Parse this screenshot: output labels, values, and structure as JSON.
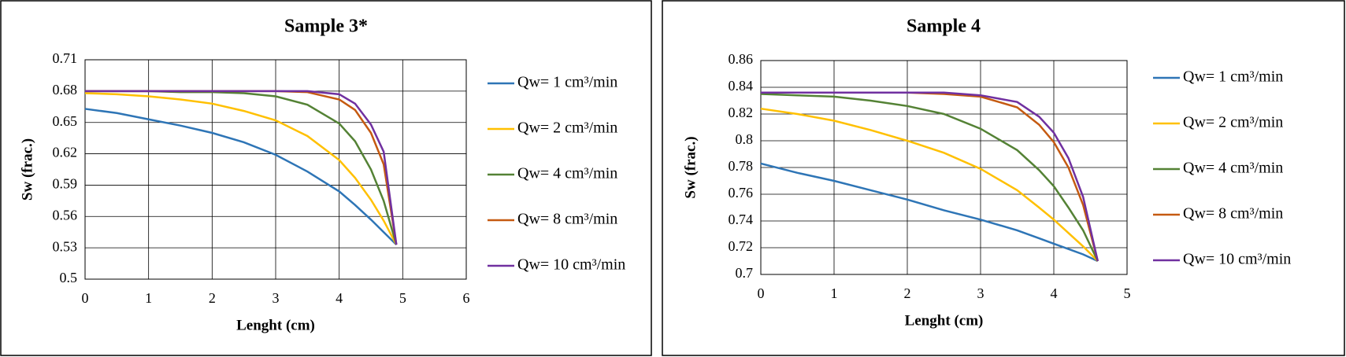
{
  "chart_data": [
    {
      "type": "line",
      "title": "Sample 3*",
      "x_label": "Lenght (cm)",
      "y_label": "Sw (frac.)",
      "xlim": [
        0,
        6
      ],
      "xticks": [
        0,
        1,
        2,
        3,
        4,
        5,
        6
      ],
      "ylim": [
        0.5,
        0.71
      ],
      "yticks": [
        0.5,
        0.53,
        0.56,
        0.59,
        0.62,
        0.65,
        0.68,
        0.71
      ],
      "grid": true,
      "legend": "right",
      "x": [
        0,
        0.5,
        1,
        1.5,
        2,
        2.5,
        3,
        3.5,
        4,
        4.25,
        4.5,
        4.7,
        4.9
      ],
      "series": [
        {
          "name": "Qw= 1 cm³/min",
          "color": "#2e75b6",
          "values": [
            0.663,
            0.659,
            0.653,
            0.647,
            0.64,
            0.631,
            0.619,
            0.603,
            0.584,
            0.571,
            0.557,
            0.545,
            0.533
          ]
        },
        {
          "name": "Qw= 2 cm³/min",
          "color": "#ffc000",
          "values": [
            0.678,
            0.677,
            0.675,
            0.672,
            0.668,
            0.661,
            0.652,
            0.637,
            0.614,
            0.597,
            0.576,
            0.556,
            0.533
          ]
        },
        {
          "name": "Qw= 4 cm³/min",
          "color": "#548235",
          "values": [
            0.68,
            0.68,
            0.68,
            0.679,
            0.679,
            0.678,
            0.675,
            0.667,
            0.649,
            0.632,
            0.605,
            0.575,
            0.533
          ]
        },
        {
          "name": "Qw= 8 cm³/min",
          "color": "#c55a11",
          "values": [
            0.68,
            0.68,
            0.68,
            0.68,
            0.68,
            0.68,
            0.68,
            0.679,
            0.672,
            0.662,
            0.64,
            0.61,
            0.533
          ]
        },
        {
          "name": "Qw= 10 cm³/min",
          "color": "#7030a0",
          "values": [
            0.68,
            0.68,
            0.68,
            0.68,
            0.68,
            0.68,
            0.68,
            0.68,
            0.677,
            0.668,
            0.648,
            0.622,
            0.533
          ]
        }
      ]
    },
    {
      "type": "line",
      "title": "Sample 4",
      "x_label": "Lenght (cm)",
      "y_label": "Sw (frac.)",
      "xlim": [
        0,
        5
      ],
      "xticks": [
        0,
        1,
        2,
        3,
        4,
        5
      ],
      "ylim": [
        0.7,
        0.86
      ],
      "yticks": [
        0.7,
        0.72,
        0.74,
        0.76,
        0.78,
        0.8,
        0.82,
        0.84,
        0.86
      ],
      "grid": true,
      "legend": "right",
      "x": [
        0,
        0.5,
        1,
        1.5,
        2,
        2.5,
        3,
        3.5,
        3.8,
        4,
        4.2,
        4.4,
        4.6
      ],
      "series": [
        {
          "name": "Qw= 1 cm³/min",
          "color": "#2e75b6",
          "values": [
            0.783,
            0.776,
            0.77,
            0.763,
            0.756,
            0.748,
            0.741,
            0.733,
            0.727,
            0.723,
            0.719,
            0.715,
            0.71
          ]
        },
        {
          "name": "Qw= 2 cm³/min",
          "color": "#ffc000",
          "values": [
            0.824,
            0.82,
            0.815,
            0.808,
            0.8,
            0.791,
            0.779,
            0.763,
            0.75,
            0.741,
            0.731,
            0.721,
            0.71
          ]
        },
        {
          "name": "Qw= 4 cm³/min",
          "color": "#548235",
          "values": [
            0.835,
            0.834,
            0.833,
            0.83,
            0.826,
            0.82,
            0.809,
            0.793,
            0.778,
            0.766,
            0.75,
            0.733,
            0.71
          ]
        },
        {
          "name": "Qw= 8 cm³/min",
          "color": "#c55a11",
          "values": [
            0.836,
            0.836,
            0.836,
            0.836,
            0.836,
            0.835,
            0.833,
            0.825,
            0.812,
            0.799,
            0.78,
            0.752,
            0.71
          ]
        },
        {
          "name": "Qw= 10 cm³/min",
          "color": "#7030a0",
          "values": [
            0.836,
            0.836,
            0.836,
            0.836,
            0.836,
            0.836,
            0.834,
            0.829,
            0.818,
            0.806,
            0.787,
            0.758,
            0.71
          ]
        }
      ]
    }
  ]
}
